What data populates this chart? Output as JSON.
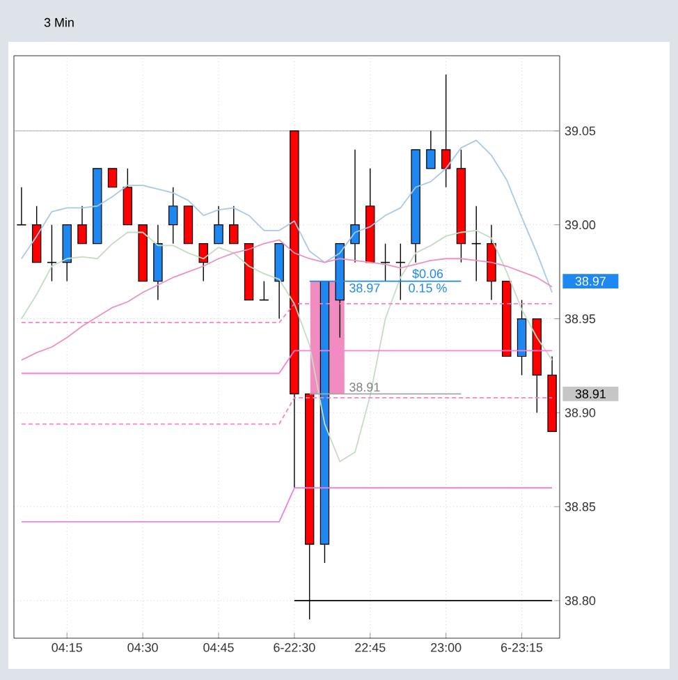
{
  "chart_data": {
    "type": "candlestick",
    "title": "3 Min",
    "categories": [
      null,
      null,
      null,
      "04:15",
      null,
      null,
      null,
      null,
      "04:30",
      null,
      null,
      null,
      null,
      "04:45",
      null,
      null,
      null,
      null,
      "6-22:30",
      null,
      null,
      null,
      null,
      "22:45",
      null,
      null,
      null,
      null,
      "23:00",
      null,
      null,
      null,
      null,
      "6-23:15",
      null,
      null
    ],
    "ohlc": [
      [
        39.0,
        39.02,
        39.0,
        39.0
      ],
      [
        39.0,
        39.01,
        38.98,
        38.98
      ],
      [
        38.98,
        39.0,
        38.97,
        38.98
      ],
      [
        38.98,
        39.0,
        38.97,
        39.0
      ],
      [
        39.0,
        39.01,
        38.99,
        38.99
      ],
      [
        38.99,
        39.03,
        38.99,
        39.03
      ],
      [
        39.03,
        39.03,
        39.02,
        39.02
      ],
      [
        39.02,
        39.03,
        39.0,
        39.0
      ],
      [
        39.0,
        39.0,
        38.97,
        38.97
      ],
      [
        38.97,
        39.0,
        38.96,
        38.99
      ],
      [
        39.0,
        39.02,
        38.99,
        39.01
      ],
      [
        39.01,
        39.01,
        38.99,
        38.99
      ],
      [
        38.99,
        38.99,
        38.97,
        38.98
      ],
      [
        38.99,
        39.01,
        38.99,
        39.0
      ],
      [
        39.0,
        39.01,
        38.99,
        38.99
      ],
      [
        38.99,
        38.99,
        38.96,
        38.96
      ],
      [
        38.96,
        38.97,
        38.96,
        38.96
      ],
      [
        38.97,
        38.99,
        38.95,
        38.99
      ],
      [
        39.05,
        39.05,
        38.86,
        38.91
      ],
      [
        38.91,
        38.91,
        38.79,
        38.83
      ],
      [
        38.83,
        38.97,
        38.82,
        38.97
      ],
      [
        38.96,
        38.99,
        38.94,
        38.99
      ],
      [
        38.99,
        39.04,
        38.98,
        39.0
      ],
      [
        39.01,
        39.03,
        38.98,
        38.98
      ],
      [
        38.98,
        38.99,
        38.97,
        38.98
      ],
      [
        38.98,
        38.99,
        38.96,
        38.98
      ],
      [
        38.99,
        39.04,
        38.98,
        39.04
      ],
      [
        39.03,
        39.05,
        39.03,
        39.04
      ],
      [
        39.04,
        39.08,
        39.02,
        39.03
      ],
      [
        39.03,
        39.04,
        38.98,
        38.99
      ],
      [
        38.99,
        39.01,
        38.97,
        38.99
      ],
      [
        38.99,
        39.0,
        38.96,
        38.97
      ],
      [
        38.97,
        38.97,
        38.93,
        38.93
      ],
      [
        38.93,
        38.96,
        38.92,
        38.95
      ],
      [
        38.95,
        38.95,
        38.9,
        38.92
      ],
      [
        38.92,
        38.93,
        38.89,
        38.89
      ]
    ],
    "colors": [
      "#000000",
      "#ff0000",
      "#000000",
      "#1e87f0",
      "#ff0000",
      "#1e87f0",
      "#ff0000",
      "#ff0000",
      "#ff0000",
      "#1e87f0",
      "#1e87f0",
      "#ff0000",
      "#ff0000",
      "#1e87f0",
      "#ff0000",
      "#ff0000",
      "#000000",
      "#1e87f0",
      "#ff0000",
      "#ff0000",
      "#1e87f0",
      "#1e87f0",
      "#1e87f0",
      "#ff0000",
      "#000000",
      "#000000",
      "#1e87f0",
      "#1e87f0",
      "#ff0000",
      "#ff0000",
      "#000000",
      "#ff0000",
      "#ff0000",
      "#1e87f0",
      "#ff0000",
      "#ff0000"
    ],
    "series": [
      {
        "type": "line",
        "color": "#a8c8ec",
        "line_style": "solid",
        "values": [
          38.982,
          38.994,
          39.007,
          39.009,
          39.009,
          39.01,
          39.015,
          39.021,
          39.021,
          39.019,
          39.017,
          39.013,
          39.005,
          39.008,
          39.009,
          39.005,
          38.997,
          38.997,
          39.002,
          38.986,
          38.98,
          38.985,
          38.996,
          38.999,
          39.005,
          39.009,
          39.02,
          39.023,
          39.03,
          39.041,
          39.045,
          39.037,
          39.024,
          39.004,
          38.985,
          38.964
        ]
      },
      {
        "type": "line",
        "color": "#c4dcc4",
        "line_style": "solid",
        "values": [
          38.95,
          38.963,
          38.978,
          38.982,
          38.983,
          38.982,
          38.99,
          38.996,
          38.996,
          38.989,
          38.989,
          38.985,
          38.982,
          38.988,
          38.985,
          38.978,
          38.974,
          38.971,
          38.958,
          38.936,
          38.894,
          38.874,
          38.879,
          38.909,
          38.95,
          38.972,
          38.985,
          38.989,
          38.994,
          38.996,
          38.997,
          38.993,
          38.975,
          38.955,
          38.94,
          38.928
        ]
      },
      {
        "type": "line",
        "color": "#f090c0",
        "line_style": "solid",
        "values": [
          38.928,
          38.932,
          38.935,
          38.94,
          38.946,
          38.951,
          38.956,
          38.959,
          38.964,
          38.968,
          38.972,
          38.975,
          38.978,
          38.982,
          38.985,
          38.987,
          38.99,
          38.992,
          38.985,
          38.982,
          38.98,
          38.982,
          38.981,
          38.98,
          38.979,
          38.977,
          38.979,
          38.981,
          38.982,
          38.982,
          38.981,
          38.98,
          38.978,
          38.975,
          38.972,
          38.967
        ]
      },
      {
        "type": "line",
        "color": "#ff80d8",
        "line_style": "solid",
        "values": [
          38.921,
          38.921,
          38.921,
          38.921,
          38.921,
          38.921,
          38.921,
          38.921,
          38.921,
          38.921,
          38.921,
          38.921,
          38.921,
          38.921,
          38.921,
          38.921,
          38.921,
          38.921,
          38.933,
          38.933,
          38.933,
          38.933,
          38.933,
          38.933,
          38.933,
          38.933,
          38.933,
          38.933,
          38.933,
          38.933,
          38.933,
          38.933,
          38.933,
          38.933,
          38.933,
          38.933
        ]
      },
      {
        "type": "line",
        "color": "#ff80c0",
        "line_style": "dashed",
        "values": [
          38.948,
          38.948,
          38.948,
          38.948,
          38.948,
          38.948,
          38.948,
          38.948,
          38.948,
          38.948,
          38.948,
          38.948,
          38.948,
          38.948,
          38.948,
          38.948,
          38.948,
          38.948,
          38.958,
          38.958,
          38.958,
          38.958,
          38.958,
          38.958,
          38.958,
          38.958,
          38.958,
          38.958,
          38.958,
          38.958,
          38.958,
          38.958,
          38.958,
          38.958,
          38.958,
          38.958
        ]
      },
      {
        "type": "line",
        "color": "#ff80c0",
        "line_style": "dashed",
        "values": [
          38.894,
          38.894,
          38.894,
          38.894,
          38.894,
          38.894,
          38.894,
          38.894,
          38.894,
          38.894,
          38.894,
          38.894,
          38.894,
          38.894,
          38.894,
          38.894,
          38.894,
          38.894,
          38.908,
          38.908,
          38.908,
          38.908,
          38.908,
          38.908,
          38.908,
          38.908,
          38.908,
          38.908,
          38.908,
          38.908,
          38.908,
          38.908,
          38.908,
          38.908,
          38.908,
          38.908
        ]
      },
      {
        "type": "line",
        "color": "#f080e0",
        "line_style": "solid",
        "values": [
          38.842,
          38.842,
          38.842,
          38.842,
          38.842,
          38.842,
          38.842,
          38.842,
          38.842,
          38.842,
          38.842,
          38.842,
          38.842,
          38.842,
          38.842,
          38.842,
          38.842,
          38.842,
          38.86,
          38.86,
          38.86,
          38.86,
          38.86,
          38.86,
          38.86,
          38.86,
          38.86,
          38.86,
          38.86,
          38.86,
          38.86,
          38.86,
          38.86,
          38.86,
          38.86,
          38.86
        ]
      },
      {
        "type": "line",
        "color": "#000000",
        "line_style": "solid",
        "values": [
          null,
          null,
          null,
          null,
          null,
          null,
          null,
          null,
          null,
          null,
          null,
          null,
          null,
          null,
          null,
          null,
          null,
          null,
          38.8,
          38.8,
          38.8,
          38.8,
          38.8,
          38.8,
          38.8,
          38.8,
          38.8,
          38.8,
          38.8,
          38.8,
          38.8,
          38.8,
          38.8,
          38.8,
          38.8,
          38.8
        ]
      },
      {
        "type": "line",
        "color": "#1e87f0",
        "line_style": "solid",
        "values": [
          null,
          null,
          null,
          null,
          null,
          null,
          null,
          null,
          null,
          null,
          null,
          null,
          null,
          null,
          null,
          null,
          null,
          null,
          null,
          38.97,
          38.97,
          38.97,
          38.97,
          38.97,
          38.97,
          38.97,
          38.97,
          38.97,
          38.97,
          38.97,
          null,
          null,
          null,
          null,
          null,
          null
        ]
      },
      {
        "type": "line",
        "color": "#a6a6a6",
        "line_style": "solid",
        "values": [
          null,
          null,
          null,
          null,
          null,
          null,
          null,
          null,
          null,
          null,
          null,
          null,
          null,
          null,
          null,
          null,
          null,
          null,
          null,
          38.91,
          38.91,
          38.91,
          38.91,
          38.91,
          38.91,
          38.91,
          38.91,
          38.91,
          38.91,
          38.91,
          null,
          null,
          null,
          null,
          null,
          null
        ]
      }
    ],
    "ylim": [
      38.78,
      39.09
    ],
    "yticks": [
      {
        "value": 38.8,
        "label": "38.80"
      },
      {
        "value": 38.85,
        "label": "38.85"
      },
      {
        "value": 38.9,
        "label": "38.90"
      },
      {
        "value": 38.95,
        "label": "38.95"
      },
      {
        "value": 39.0,
        "label": "39.00"
      },
      {
        "value": 39.05,
        "label": "39.05"
      }
    ],
    "grid": true,
    "ref_lines": [
      {
        "axis": "y",
        "value": 39.05,
        "color": "#999999"
      }
    ],
    "annotations": [
      "38.97",
      "38.91",
      "$0.06",
      "0.15 %",
      "38.97",
      "38.91"
    ]
  }
}
